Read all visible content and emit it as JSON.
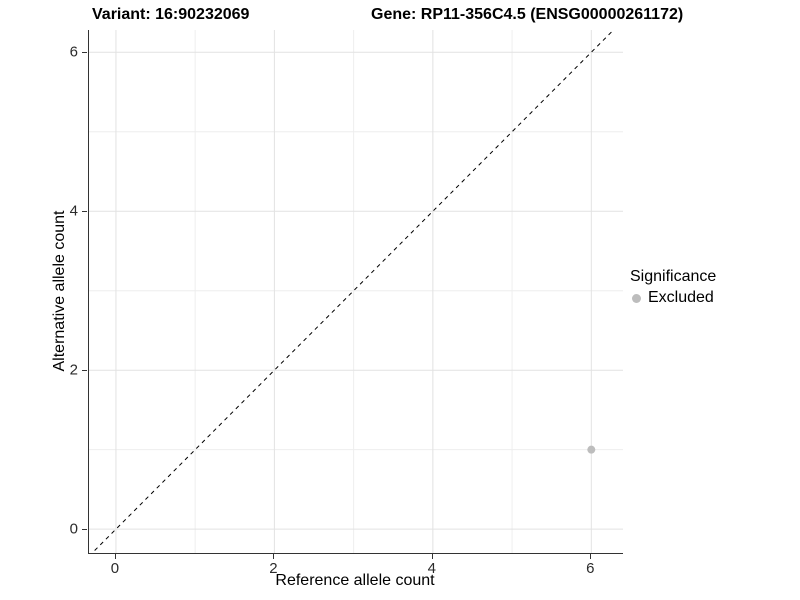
{
  "chart_data": {
    "type": "scatter",
    "title_left": "Variant: 16:90232069",
    "title_right": "Gene: RP11-356C4.5 (ENSG00000261172)",
    "xlabel": "Reference allele count",
    "ylabel": "Alternative allele count",
    "xlim": [
      -0.34,
      6.4
    ],
    "ylim": [
      -0.3,
      6.28
    ],
    "x_ticks": [
      0,
      2,
      4,
      6
    ],
    "y_ticks": [
      0,
      2,
      4,
      6
    ],
    "x_minor_gridlines": [
      1,
      3,
      5
    ],
    "y_minor_gridlines": [
      1,
      3,
      5
    ],
    "grid": true,
    "abline": {
      "slope": 1,
      "intercept": 0,
      "style": "dashed"
    },
    "series": [
      {
        "name": "Excluded",
        "points": [
          {
            "x": 6,
            "y": 1
          }
        ]
      }
    ],
    "legend": {
      "position": "right",
      "title": "Significance",
      "items": [
        {
          "label": "Excluded",
          "color": "#bdbdbd"
        }
      ]
    },
    "colors": {
      "background": "#ffffff",
      "grid_major": "#e2e2e2",
      "grid_minor": "#eeeeee",
      "axis_line": "#333333",
      "tick_text": "#2b2b2b",
      "point": "#bdbdbd",
      "abline": "#000000"
    }
  }
}
